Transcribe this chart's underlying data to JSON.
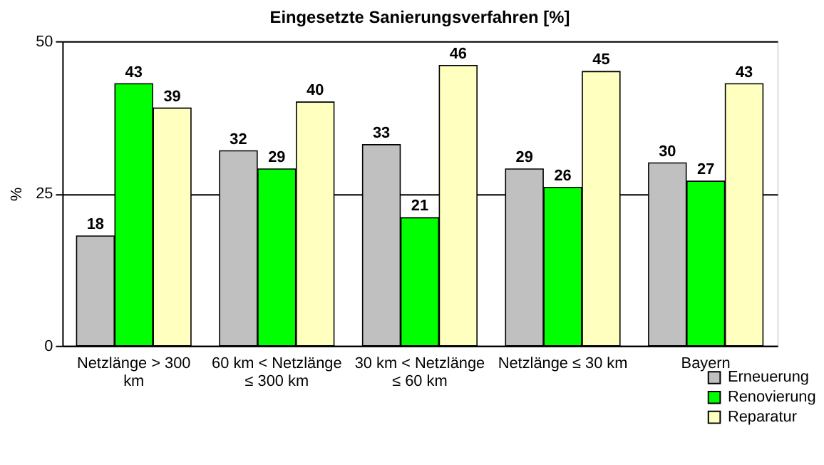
{
  "chart_data": {
    "type": "bar",
    "title": "Eingesetzte Sanierungsverfahren [%]",
    "ylabel": "%",
    "categories": [
      "Netzlänge > 300 km",
      "60 km < Netzlänge ≤ 300 km",
      "30 km < Netzlänge ≤ 60 km",
      "Netzlänge ≤ 30 km",
      "Bayern"
    ],
    "series": [
      {
        "name": "Erneuerung",
        "color": "#c0c0c0",
        "values": [
          18,
          32,
          33,
          29,
          30
        ]
      },
      {
        "name": "Renovierung",
        "color": "#00ff00",
        "values": [
          43,
          29,
          21,
          26,
          27
        ]
      },
      {
        "name": "Reparatur",
        "color": "#ffffc0",
        "values": [
          39,
          40,
          46,
          45,
          43
        ]
      }
    ],
    "ylim": [
      0,
      50
    ],
    "yticks": [
      0,
      25,
      50
    ],
    "grid": "y",
    "legend": "bottom right",
    "data_labels": true
  }
}
